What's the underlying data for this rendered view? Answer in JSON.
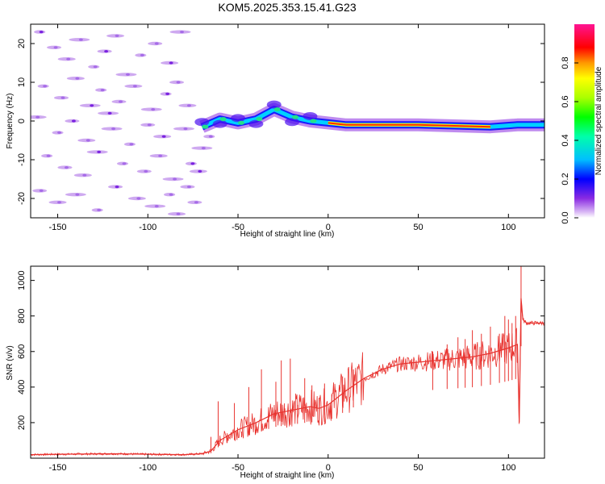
{
  "title": "KOM5.2025.353.15.41.G23",
  "chart_data": [
    {
      "type": "heatmap",
      "name": "spectrogram",
      "xlabel": "Height of straight line (km)",
      "ylabel": "Frequency (Hz)",
      "xlim": [
        -165,
        120
      ],
      "ylim": [
        -25,
        25
      ],
      "xticks": [
        -150,
        -100,
        -50,
        0,
        50,
        100
      ],
      "xtick_labels": [
        "-150",
        "-100",
        "-50",
        "0",
        "50",
        "100"
      ],
      "yticks": [
        -20,
        -10,
        0,
        10,
        20
      ],
      "ytick_labels": [
        "-20",
        "-10",
        "0",
        "10",
        "20"
      ],
      "colorbar": {
        "label": "Normalized spectral amplitude",
        "range": [
          0,
          1
        ],
        "ticks": [
          0.0,
          0.2,
          0.4,
          0.6,
          0.8
        ],
        "tick_labels": [
          "0.0",
          "0.2",
          "0.4",
          "0.6",
          "0.8"
        ]
      },
      "ridge_frequency_hz": [
        {
          "x": -70,
          "f": -1.5
        },
        {
          "x": -60,
          "f": 0.5
        },
        {
          "x": -50,
          "f": -0.5
        },
        {
          "x": -40,
          "f": 0.5
        },
        {
          "x": -30,
          "f": 3
        },
        {
          "x": -20,
          "f": 1
        },
        {
          "x": -10,
          "f": 0
        },
        {
          "x": 0,
          "f": -0.5
        },
        {
          "x": 10,
          "f": -1
        },
        {
          "x": 50,
          "f": -1
        },
        {
          "x": 90,
          "f": -1.5
        },
        {
          "x": 105,
          "f": -1
        },
        {
          "x": 120,
          "f": -1
        }
      ]
    },
    {
      "type": "line",
      "name": "snr",
      "xlabel": "Height of straight line (km)",
      "ylabel": "SNR (v/v)",
      "xlim": [
        -165,
        120
      ],
      "ylim": [
        0,
        1080
      ],
      "xticks": [
        -150,
        -100,
        -50,
        0,
        50,
        100
      ],
      "xtick_labels": [
        "-150",
        "-100",
        "-50",
        "0",
        "50",
        "100"
      ],
      "yticks": [
        200,
        400,
        600,
        800,
        1000
      ],
      "ytick_labels": [
        "200",
        "400",
        "600",
        "800",
        "1000"
      ],
      "color": "#e8332f",
      "series": [
        {
          "name": "SNR baseline",
          "x": [
            -165,
            -150,
            -120,
            -100,
            -80,
            -70,
            -65,
            -60,
            -50,
            -40,
            -30,
            -20,
            -10,
            -5,
            0,
            10,
            20,
            30,
            40,
            50,
            60,
            70,
            80,
            90,
            100,
            105,
            106,
            107,
            108,
            110,
            115,
            120
          ],
          "y": [
            20,
            22,
            25,
            22,
            20,
            25,
            40,
            100,
            160,
            200,
            250,
            270,
            290,
            280,
            300,
            380,
            450,
            500,
            530,
            540,
            550,
            560,
            570,
            590,
            620,
            640,
            200,
            900,
            780,
            760,
            760,
            760
          ]
        },
        {
          "name": "SNR spikes",
          "x": [
            -65,
            -61,
            -56,
            -52,
            -48,
            -44,
            -40,
            -37,
            -33,
            -29,
            -26,
            -24,
            -21,
            -17,
            -13,
            -9,
            -5,
            -2,
            2,
            8,
            14,
            58,
            66,
            72,
            76,
            80,
            85,
            90,
            95,
            98,
            100,
            102,
            104,
            107
          ],
          "y": [
            120,
            320,
            140,
            310,
            150,
            400,
            200,
            500,
            250,
            430,
            550,
            280,
            560,
            300,
            450,
            410,
            340,
            420,
            360,
            460,
            500,
            600,
            640,
            680,
            670,
            720,
            700,
            740,
            700,
            800,
            780,
            760,
            800,
            1080
          ]
        }
      ]
    }
  ],
  "noise_speckles": [
    {
      "x": -160,
      "f": 23
    },
    {
      "x": -152,
      "f": 19
    },
    {
      "x": -145,
      "f": 16
    },
    {
      "x": -138,
      "f": 21
    },
    {
      "x": -130,
      "f": 14
    },
    {
      "x": -124,
      "f": 18
    },
    {
      "x": -118,
      "f": 22
    },
    {
      "x": -112,
      "f": 12
    },
    {
      "x": -104,
      "f": 17
    },
    {
      "x": -96,
      "f": 20
    },
    {
      "x": -88,
      "f": 15
    },
    {
      "x": -82,
      "f": 23
    },
    {
      "x": -158,
      "f": 9
    },
    {
      "x": -148,
      "f": 6
    },
    {
      "x": -140,
      "f": 11
    },
    {
      "x": -132,
      "f": 4
    },
    {
      "x": -126,
      "f": 8
    },
    {
      "x": -116,
      "f": 5
    },
    {
      "x": -108,
      "f": 9
    },
    {
      "x": -98,
      "f": 3
    },
    {
      "x": -90,
      "f": 7
    },
    {
      "x": -84,
      "f": 10
    },
    {
      "x": -78,
      "f": 4
    },
    {
      "x": -162,
      "f": 1
    },
    {
      "x": -150,
      "f": -3
    },
    {
      "x": -142,
      "f": 0
    },
    {
      "x": -134,
      "f": -5
    },
    {
      "x": -120,
      "f": -2
    },
    {
      "x": -110,
      "f": -6
    },
    {
      "x": -100,
      "f": -1
    },
    {
      "x": -92,
      "f": -4
    },
    {
      "x": -80,
      "f": -2
    },
    {
      "x": -156,
      "f": -9
    },
    {
      "x": -146,
      "f": -12
    },
    {
      "x": -136,
      "f": -14
    },
    {
      "x": -128,
      "f": -8
    },
    {
      "x": -114,
      "f": -11
    },
    {
      "x": -102,
      "f": -13
    },
    {
      "x": -94,
      "f": -9
    },
    {
      "x": -86,
      "f": -15
    },
    {
      "x": -76,
      "f": -11
    },
    {
      "x": -160,
      "f": -18
    },
    {
      "x": -150,
      "f": -21
    },
    {
      "x": -140,
      "f": -19
    },
    {
      "x": -128,
      "f": -23
    },
    {
      "x": -118,
      "f": -17
    },
    {
      "x": -106,
      "f": -20
    },
    {
      "x": -96,
      "f": -22
    },
    {
      "x": -88,
      "f": -19
    },
    {
      "x": -78,
      "f": -17
    },
    {
      "x": -72,
      "f": -13
    },
    {
      "x": -70,
      "f": -7
    },
    {
      "x": -66,
      "f": -4
    },
    {
      "x": -74,
      "f": -21
    },
    {
      "x": -84,
      "f": -24
    },
    {
      "x": -122,
      "f": 2
    }
  ]
}
